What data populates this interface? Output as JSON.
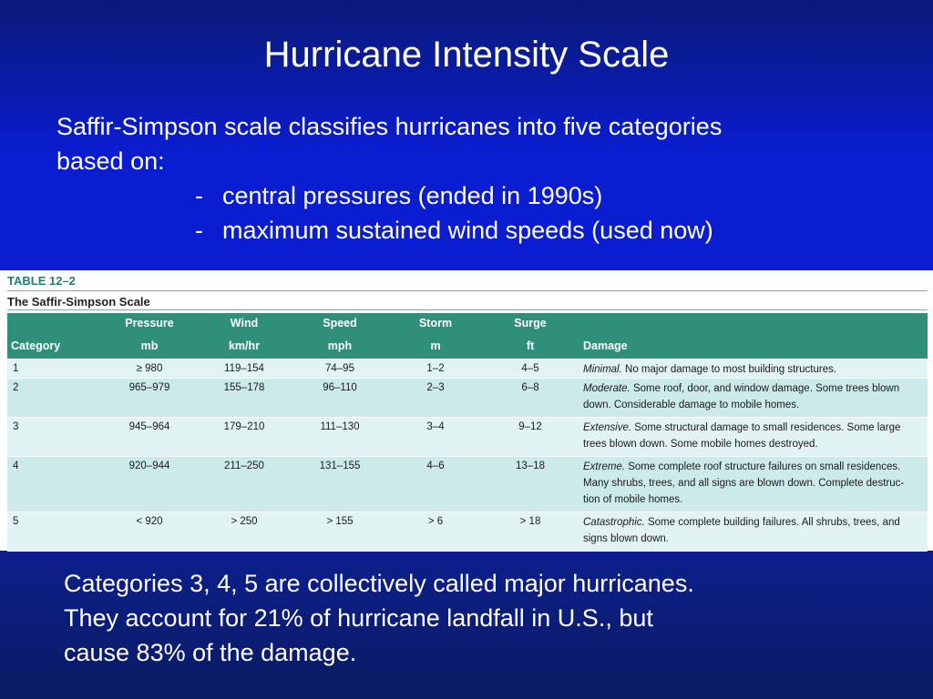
{
  "slide": {
    "title": "Hurricane Intensity Scale",
    "intro_line1": "Saffir-Simpson scale classifies hurricanes into five categories",
    "intro_line2": "based on:",
    "bullets": [
      "central pressures (ended in 1990s)",
      "maximum sustained wind speeds (used now)"
    ],
    "bullet_marker": "-",
    "footer_lines": [
      "Categories 3, 4, 5 are collectively called major hurricanes.",
      "They account for 21% of hurricane landfall in U.S., but",
      "cause 83% of the damage."
    ]
  },
  "table": {
    "label": "TABLE 12–2",
    "title": "The Saffir-Simpson Scale",
    "header_top": [
      "",
      "Pressure",
      "Wind",
      "Speed",
      "Storm",
      "Surge",
      ""
    ],
    "header_bottom": [
      "Category",
      "mb",
      "km/hr",
      "mph",
      "m",
      "ft",
      "Damage"
    ],
    "rows": [
      {
        "category": "1",
        "pressure": "≥ 980",
        "wind": "119–154",
        "speed": "74–95",
        "storm": "1–2",
        "surge": "4–5",
        "damage_label": "Minimal.",
        "damage_lines": [
          "No major damage to most building structures."
        ]
      },
      {
        "category": "2",
        "pressure": "965–979",
        "wind": "155–178",
        "speed": "96–110",
        "storm": "2–3",
        "surge": "6–8",
        "damage_label": "Moderate.",
        "damage_lines": [
          "Some roof, door, and window damage. Some trees blown",
          "down. Considerable damage to mobile homes."
        ]
      },
      {
        "category": "3",
        "pressure": "945–964",
        "wind": "179–210",
        "speed": "111–130",
        "storm": "3–4",
        "surge": "9–12",
        "damage_label": "Extensive.",
        "damage_lines": [
          "Some structural damage to small residences. Some large",
          "trees blown down. Some mobile homes destroyed."
        ]
      },
      {
        "category": "4",
        "pressure": "920–944",
        "wind": "211–250",
        "speed": "131–155",
        "storm": "4–6",
        "surge": "13–18",
        "damage_label": "Extreme.",
        "damage_lines": [
          "Some complete roof structure failures on small residences.",
          "Many shrubs, trees, and all signs are blown down. Complete destruc-",
          "tion of mobile homes."
        ]
      },
      {
        "category": "5",
        "pressure": "< 920",
        "wind": "> 250",
        "speed": "> 155",
        "storm": "> 6",
        "surge": "> 18",
        "damage_label": "Catastrophic.",
        "damage_lines": [
          "Some complete building failures. All shrubs, trees, and",
          "signs blown down."
        ]
      }
    ]
  },
  "colors": {
    "background": "#0a1dd0",
    "table_header": "#2f8f7a",
    "table_label": "#1f7d73",
    "row_light": "#e2f3f3",
    "row_dark": "#cdeaea"
  }
}
